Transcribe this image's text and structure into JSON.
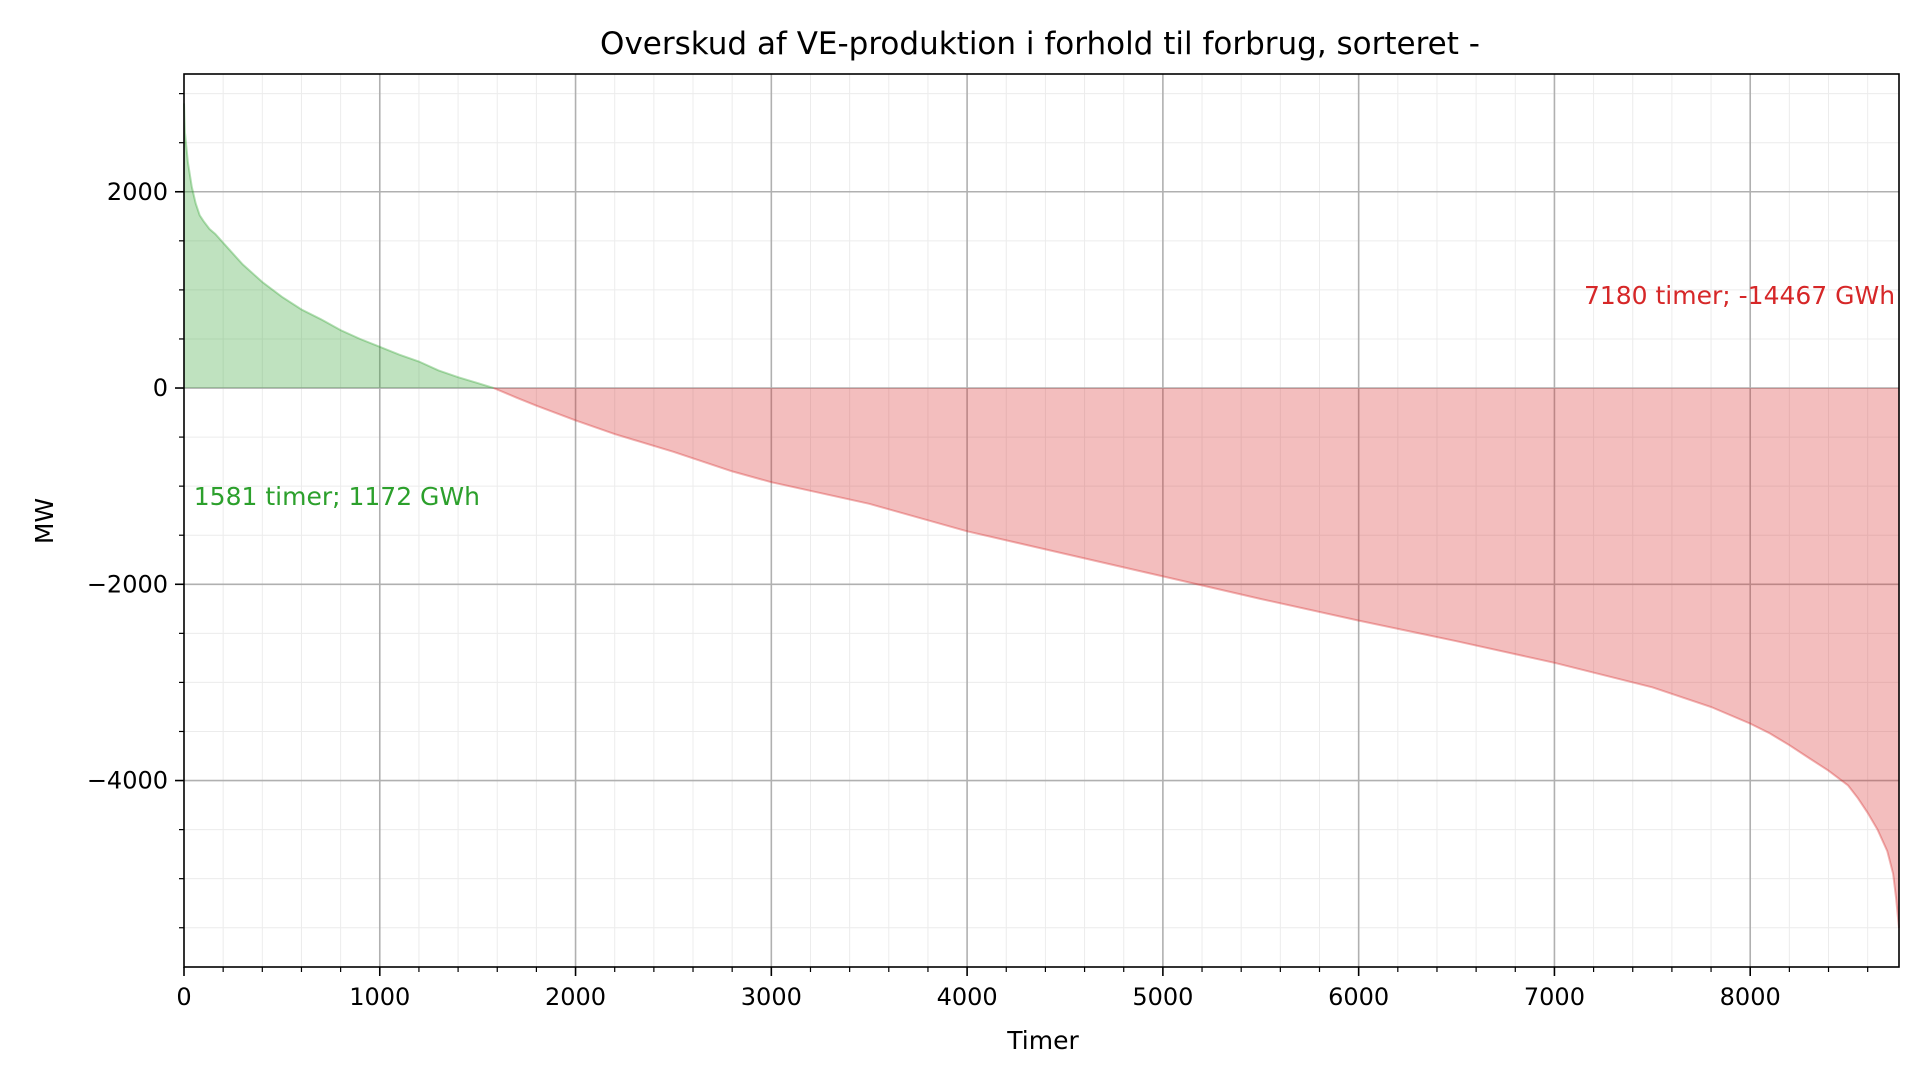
{
  "chart_data": {
    "type": "area",
    "title": "Overskud af VE-produktion i forhold til forbrug, sorteret -",
    "xlabel": "Timer",
    "ylabel": "MW",
    "xlim": [
      0,
      8760
    ],
    "ylim": [
      -5900,
      3200
    ],
    "x_ticks": [
      0,
      1000,
      2000,
      3000,
      4000,
      5000,
      6000,
      7000,
      8000
    ],
    "x_tick_labels": [
      "0",
      "1000",
      "2000",
      "3000",
      "4000",
      "5000",
      "6000",
      "7000",
      "8000"
    ],
    "y_ticks": [
      2000,
      0,
      -2000,
      -4000
    ],
    "y_tick_labels": [
      "2000",
      "0",
      "−2000",
      "−4000"
    ],
    "grid": true,
    "minor_grid": true,
    "curve": {
      "x": [
        0,
        5,
        20,
        40,
        60,
        80,
        100,
        130,
        160,
        200,
        250,
        300,
        400,
        500,
        600,
        700,
        800,
        900,
        1000,
        1100,
        1200,
        1300,
        1400,
        1500,
        1581,
        1700,
        1800,
        2000,
        2200,
        2500,
        2800,
        3000,
        3500,
        4000,
        4500,
        5000,
        5500,
        6000,
        6500,
        7000,
        7500,
        7800,
        8000,
        8100,
        8200,
        8300,
        8400,
        8500,
        8550,
        8600,
        8650,
        8700,
        8730,
        8745,
        8755,
        8760
      ],
      "y": [
        2900,
        2600,
        2300,
        2050,
        1880,
        1760,
        1700,
        1620,
        1570,
        1480,
        1370,
        1260,
        1080,
        930,
        800,
        700,
        590,
        500,
        420,
        340,
        270,
        180,
        110,
        50,
        0,
        -100,
        -180,
        -330,
        -470,
        -650,
        -850,
        -960,
        -1180,
        -1460,
        -1690,
        -1920,
        -2150,
        -2370,
        -2580,
        -2800,
        -3050,
        -3250,
        -3420,
        -3520,
        -3640,
        -3770,
        -3900,
        -4050,
        -4180,
        -4330,
        -4500,
        -4720,
        -4950,
        -5200,
        -5400,
        -5500
      ]
    },
    "positive_color": "#2ca02c",
    "negative_color": "#d62728",
    "annotations": [
      {
        "text": "1581 timer; 1172 GWh",
        "x": 50,
        "y": -1100,
        "color": "#2ca02c",
        "anchor": "start"
      },
      {
        "text": "7180 timer; -14467 GWh",
        "x": 8740,
        "y": 950,
        "color": "#d62728",
        "anchor": "end"
      }
    ]
  }
}
